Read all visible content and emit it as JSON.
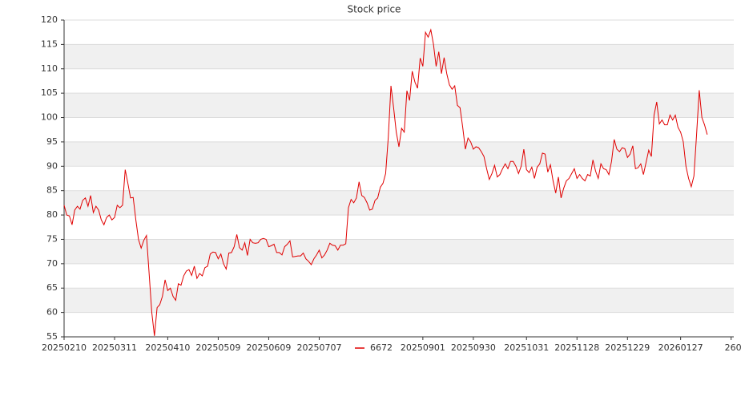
{
  "chart_data": {
    "type": "line",
    "title": "Stock price",
    "categories": [
      "20250210",
      null,
      null,
      null,
      null,
      null,
      null,
      null,
      null,
      null,
      null,
      null,
      null,
      null,
      null,
      null,
      null,
      null,
      null,
      "20250311",
      null,
      null,
      null,
      null,
      null,
      null,
      null,
      null,
      null,
      null,
      null,
      null,
      null,
      null,
      null,
      null,
      null,
      null,
      null,
      "20250410",
      null,
      null,
      null,
      null,
      null,
      null,
      null,
      null,
      null,
      null,
      null,
      null,
      null,
      null,
      null,
      null,
      null,
      null,
      "20250509",
      null,
      null,
      null,
      null,
      null,
      null,
      null,
      null,
      null,
      null,
      null,
      null,
      null,
      null,
      null,
      null,
      null,
      null,
      "20250609",
      null,
      null,
      null,
      null,
      null,
      null,
      null,
      null,
      null,
      null,
      null,
      null,
      null,
      null,
      null,
      null,
      null,
      null,
      "20250707",
      null,
      null,
      null,
      null,
      null,
      null,
      null,
      null,
      null,
      null,
      null,
      null,
      null,
      null,
      null,
      null,
      null,
      null,
      null,
      null,
      null,
      null,
      null,
      null,
      null,
      null,
      null,
      null,
      null,
      null,
      null,
      null,
      null,
      null,
      null,
      null,
      null,
      null,
      "20250901",
      null,
      null,
      null,
      null,
      null,
      null,
      null,
      null,
      null,
      null,
      null,
      null,
      null,
      null,
      null,
      null,
      null,
      null,
      "20250930",
      null,
      null,
      null,
      null,
      null,
      null,
      null,
      null,
      null,
      null,
      null,
      null,
      null,
      null,
      null,
      null,
      null,
      null,
      null,
      "20251031",
      null,
      null,
      null,
      null,
      null,
      null,
      null,
      null,
      null,
      null,
      null,
      null,
      null,
      null,
      null,
      null,
      null,
      null,
      "20251128",
      null,
      null,
      null,
      null,
      null,
      null,
      null,
      null,
      null,
      null,
      null,
      null,
      null,
      null,
      null,
      null,
      null,
      null,
      "20251229",
      null,
      null,
      null,
      null,
      null,
      null,
      null,
      null,
      null,
      null,
      null,
      null,
      null,
      null,
      null,
      null,
      null,
      null,
      null,
      "20260127",
      null,
      null,
      null,
      null,
      null,
      null,
      null,
      null,
      null,
      null,
      null,
      null,
      null,
      null,
      null,
      null,
      null,
      null,
      "260"
    ],
    "series": [
      {
        "name": "6672",
        "color": "#e00000",
        "values": [
          82,
          80,
          79.8,
          78,
          81,
          81.8,
          81.2,
          83,
          83.5,
          81.8,
          84,
          80.5,
          81.8,
          81,
          79,
          78,
          79.5,
          80,
          79,
          79.5,
          82,
          81.5,
          82,
          89.3,
          86.5,
          83.5,
          83.6,
          79,
          75,
          73.2,
          74.8,
          75.8,
          68,
          60,
          55.2,
          61,
          61.6,
          63.3,
          66.7,
          64.5,
          65,
          63.3,
          62.5,
          65.9,
          65.6,
          67.5,
          68.5,
          68.8,
          67.6,
          69.5,
          67,
          68,
          67.5,
          69.2,
          69.5,
          72,
          72.4,
          72.3,
          71,
          72,
          70,
          68.9,
          72.2,
          72.3,
          73.5,
          76,
          73.3,
          72.8,
          74.3,
          71.7,
          75,
          74.3,
          74.2,
          74.3,
          75,
          75.2,
          75,
          73.5,
          73.7,
          74,
          72.3,
          72.3,
          71.8,
          73.5,
          74,
          74.7,
          71.4,
          71.5,
          71.6,
          71.6,
          72.2,
          71,
          70.5,
          69.8,
          71,
          71.8,
          72.8,
          71.2,
          71.8,
          72.8,
          74.2,
          73.8,
          73.7,
          72.8,
          73.8,
          73.8,
          74.1,
          81.5,
          83.2,
          82.5,
          83.5,
          86.8,
          84,
          83.6,
          82.5,
          81,
          81.2,
          83,
          83.5,
          85.7,
          86.5,
          88.5,
          96,
          106.5,
          102,
          97,
          94,
          97.8,
          97,
          105.5,
          103.5,
          109.5,
          107.3,
          106,
          112.2,
          110.5,
          117.5,
          116.5,
          118,
          115,
          110.5,
          113.5,
          109,
          112.3,
          109,
          106.7,
          105.8,
          106.5,
          102.5,
          102,
          98,
          93.5,
          95.8,
          95,
          93.5,
          94,
          93.8,
          93,
          92,
          89.5,
          87.3,
          88.5,
          90.2,
          87.8,
          88.3,
          89.5,
          90.5,
          89.5,
          91,
          91,
          90,
          88.5,
          90,
          93.5,
          89.3,
          88.7,
          89.8,
          87.5,
          89.8,
          90.5,
          92.7,
          92.5,
          88.8,
          90.3,
          87,
          84.5,
          87.8,
          83.5,
          85.5,
          87,
          87.5,
          88.5,
          89.5,
          87.5,
          88.3,
          87.5,
          87,
          88.3,
          88,
          91.3,
          89,
          87.5,
          90.5,
          89.5,
          89.3,
          88.3,
          91,
          95.5,
          93.5,
          93,
          93.8,
          93.6,
          91.8,
          92.5,
          94.2,
          89.5,
          89.7,
          90.5,
          88.3,
          90.8,
          93.3,
          92,
          100.5,
          103.2,
          98.7,
          99.5,
          98.5,
          98.5,
          100.5,
          99.5,
          100.5,
          98,
          97,
          95,
          90,
          87.5,
          85.8,
          88,
          96.5,
          105.6,
          100,
          98.5,
          96.5,
          null,
          null,
          null,
          null,
          null,
          null,
          null,
          null,
          null
        ]
      }
    ],
    "ylim": [
      55,
      120
    ],
    "yticks": [
      55,
      60,
      65,
      70,
      75,
      80,
      85,
      90,
      95,
      100,
      105,
      110,
      115,
      120
    ],
    "grid": true
  }
}
